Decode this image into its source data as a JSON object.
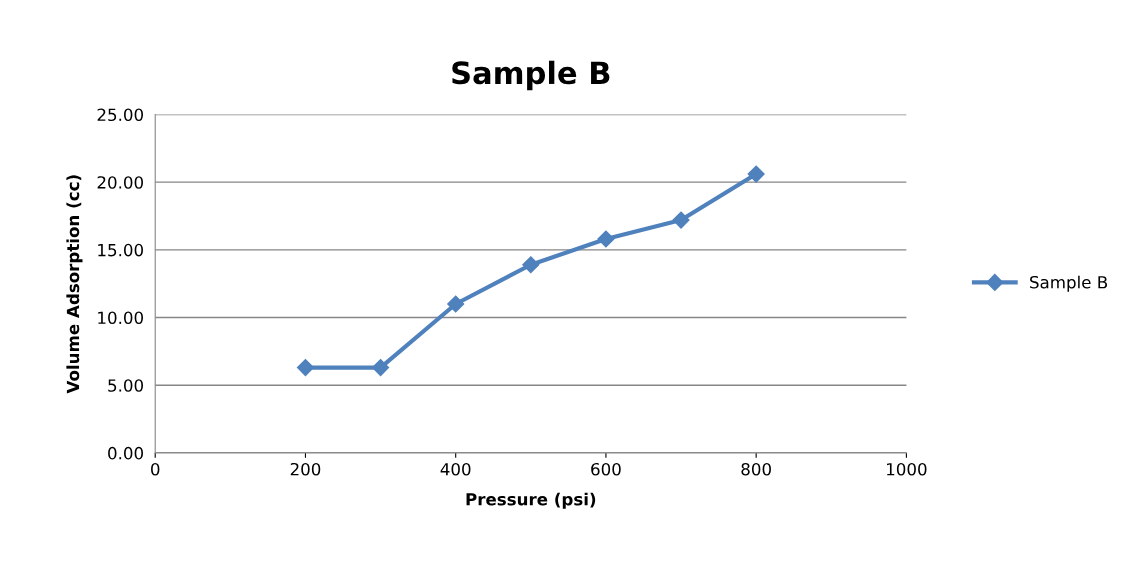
{
  "chart_data": {
    "type": "line",
    "title": "Sample B",
    "xlabel": "Pressure (psi)",
    "ylabel": "Volume Adsorption (cc)",
    "x": [
      200,
      300,
      400,
      500,
      600,
      700,
      800
    ],
    "series": [
      {
        "name": "Sample B",
        "color": "#4f81bd",
        "values": [
          6.3,
          6.3,
          11.0,
          13.9,
          15.8,
          17.2,
          20.6
        ]
      }
    ],
    "xlim": [
      0,
      1000
    ],
    "xticks": [
      0,
      200,
      400,
      600,
      800,
      1000
    ],
    "ylim": [
      0,
      25
    ],
    "yticks": [
      {
        "value": 0,
        "label": "0.00"
      },
      {
        "value": 5,
        "label": "5.00"
      },
      {
        "value": 10,
        "label": "10.00"
      },
      {
        "value": 15,
        "label": "15.00"
      },
      {
        "value": 20,
        "label": "20.00"
      },
      {
        "value": 25,
        "label": "25.00"
      }
    ],
    "grid": "y",
    "legend": "right",
    "marker": "diamond",
    "line_style": "solid"
  }
}
